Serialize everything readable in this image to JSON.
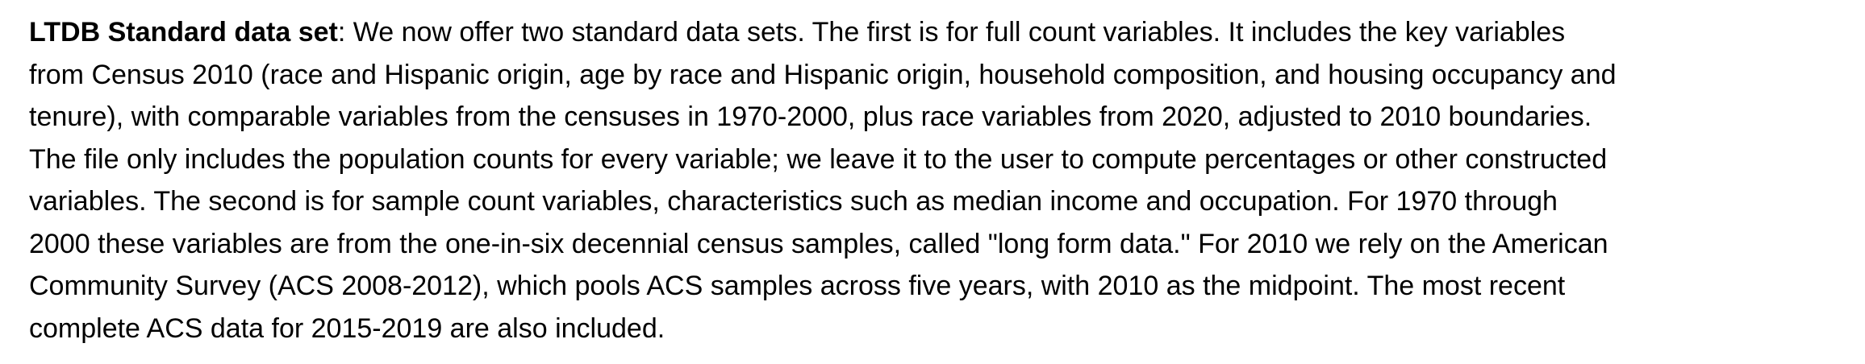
{
  "document": {
    "heading": "LTDB Standard data set",
    "lines": [
      ": We now offer two standard data sets. The first is for full count variables. It includes the key variables",
      "from Census 2010 (race and Hispanic origin, age by race and Hispanic origin, household composition, and housing occupancy and",
      "tenure), with comparable variables from the censuses in 1970-2000, plus race variables from 2020, adjusted to 2010 boundaries.",
      "The file only includes the population counts for every variable; we leave it to the user to compute percentages or other constructed",
      "variables. The second is for sample count variables, characteristics such as median income and occupation. For 1970 through",
      "2000 these variables are from the one-in-six decennial census samples, called \"long form data.\" For 2010 we rely on the American",
      "Community Survey (ACS 2008-2012), which pools ACS samples across five years, with 2010 as the midpoint. The most recent",
      "complete ACS data for 2015-2019 are also included."
    ]
  }
}
